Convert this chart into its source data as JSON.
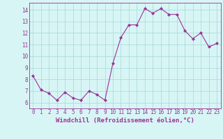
{
  "x": [
    0,
    1,
    2,
    3,
    4,
    5,
    6,
    7,
    8,
    9,
    10,
    11,
    12,
    13,
    14,
    15,
    16,
    17,
    18,
    19,
    20,
    21,
    22,
    23
  ],
  "y": [
    8.3,
    7.1,
    6.8,
    6.2,
    6.9,
    6.4,
    6.2,
    7.0,
    6.7,
    6.2,
    9.4,
    11.6,
    12.7,
    12.7,
    14.1,
    13.7,
    14.1,
    13.6,
    13.6,
    12.2,
    11.5,
    12.0,
    10.8,
    11.1
  ],
  "line_color": "#993399",
  "marker": "D",
  "marker_size": 2.0,
  "bg_color": "#d8f5f5",
  "grid_color": "#aadddd",
  "ylabel_ticks": [
    6,
    7,
    8,
    9,
    10,
    11,
    12,
    13,
    14
  ],
  "xlabel": "Windchill (Refroidissement éolien,°C)",
  "ylim": [
    5.5,
    14.6
  ],
  "xlim": [
    -0.5,
    23.5
  ],
  "tick_fontsize": 5.5,
  "label_fontsize": 6.5
}
